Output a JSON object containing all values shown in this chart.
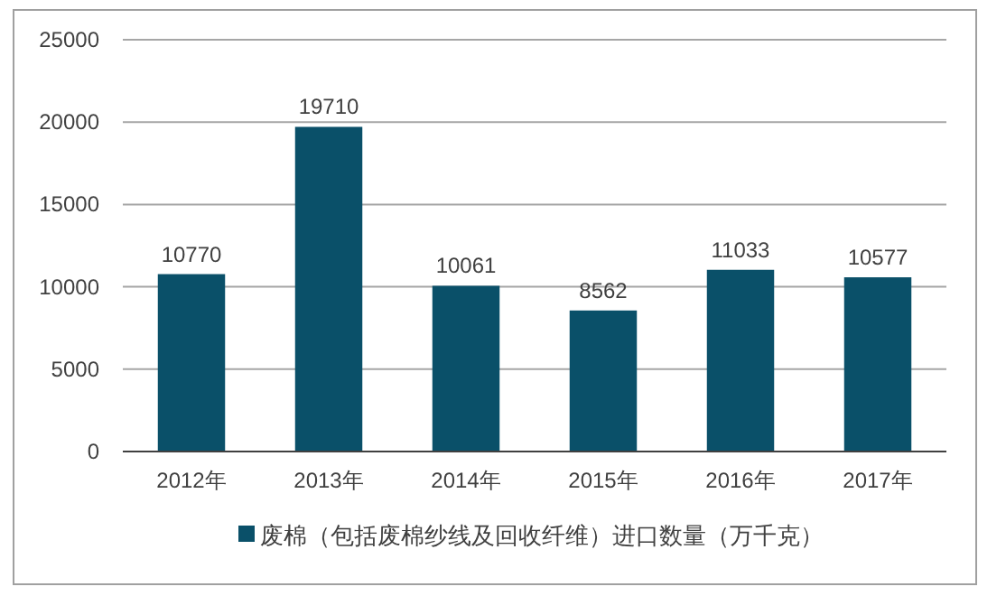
{
  "chart_data": {
    "type": "bar",
    "categories": [
      "2012年",
      "2013年",
      "2014年",
      "2015年",
      "2016年",
      "2017年"
    ],
    "series": [
      {
        "name": "废棉（包括废棉纱线及回收纤维）进口数量（万千克）",
        "color": "#0a5069",
        "values": [
          10770,
          19710,
          10061,
          8562,
          11033,
          10577
        ]
      }
    ],
    "ylim": [
      0,
      25000
    ],
    "yticks": [
      0,
      5000,
      10000,
      15000,
      20000,
      25000
    ],
    "grid": "y",
    "legend": "bottom",
    "data_labels": true
  }
}
